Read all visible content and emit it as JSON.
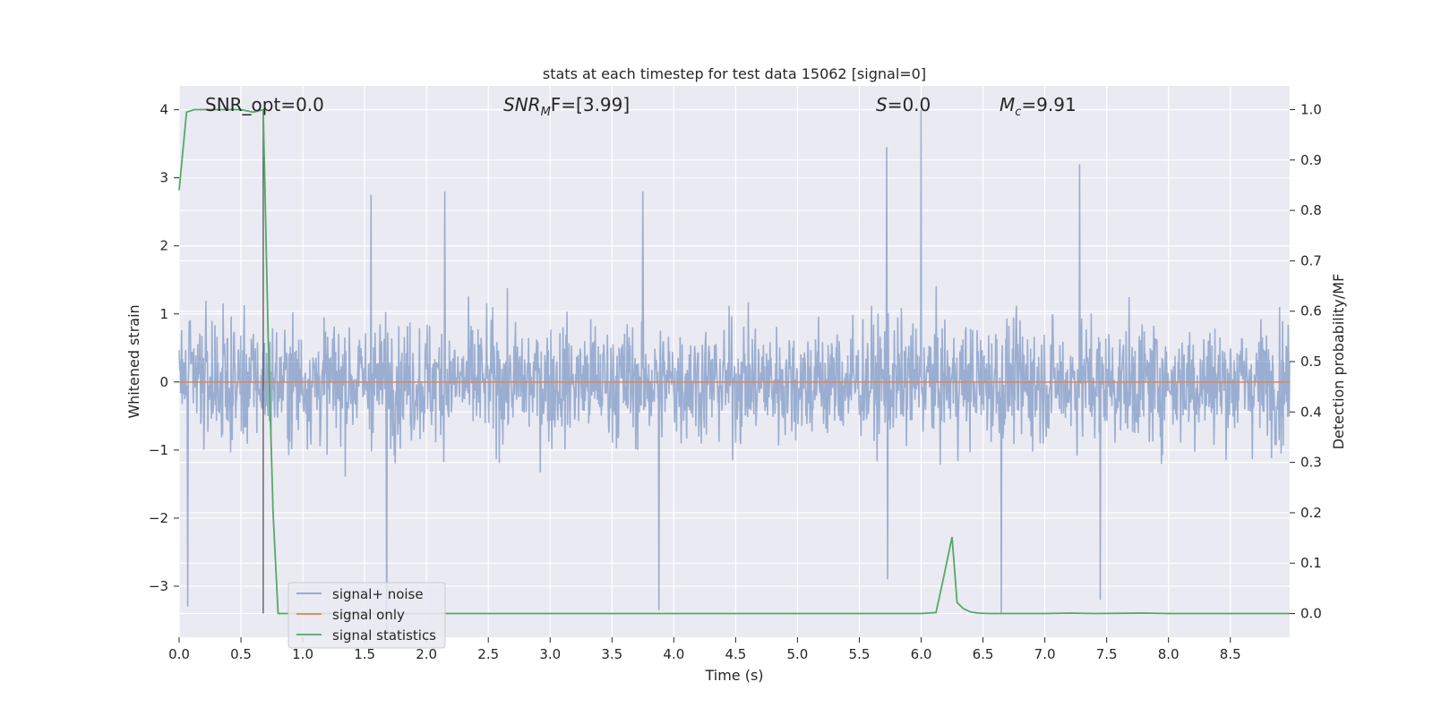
{
  "colors": {
    "figure_bg": "#ffffff",
    "axes_bg": "#eaeaf2",
    "grid": "#ffffff",
    "noise": "#4c72b0",
    "signal": "#dd8452",
    "stats": "#55a868",
    "marker": "#555555",
    "text": "#262626"
  },
  "chart_data": {
    "type": "line",
    "title": "stats at each timestep for test data 15062 [signal=0]",
    "xlabel": "Time (s)",
    "ylabel": "Whitened strain",
    "y2label": "Detection probability/MF",
    "xlim": [
      0,
      8.98
    ],
    "ylim": [
      -3.75,
      4.35
    ],
    "y2lim": [
      -0.047,
      1.047
    ],
    "grid": true,
    "legend_location": "lower-left",
    "x_ticks": [
      "0.0",
      "0.5",
      "1.0",
      "1.5",
      "2.0",
      "2.5",
      "3.0",
      "3.5",
      "4.0",
      "4.5",
      "5.0",
      "5.5",
      "6.0",
      "6.5",
      "7.0",
      "7.5",
      "8.0",
      "8.5"
    ],
    "y_ticks": [
      "4",
      "3",
      "2",
      "1",
      "0",
      "−1",
      "−2",
      "−3"
    ],
    "y2_ticks": [
      "1.0",
      "0.9",
      "0.8",
      "0.7",
      "0.6",
      "0.5",
      "0.4",
      "0.3",
      "0.2",
      "0.1",
      "0.0"
    ],
    "annotations": {
      "snr_opt": "SNR_opt=0.0",
      "snr_mf_main": "SNR",
      "snr_mf_sub": "M",
      "snr_mf_rest": "F=[3.99]",
      "s_main": "S",
      "s_rest": "=0.0",
      "mc_main": "M",
      "mc_sub": "c",
      "mc_rest": "=9.91"
    },
    "marker_time": 0.68,
    "series": [
      {
        "name": "signal+ noise",
        "axis": "left",
        "summary": "whitened strain noise, roughly within ±2 with spikes to about 4.0 at 6.0 s and -3.3 at 3.9 s",
        "peaks": [
          {
            "x": 0.07,
            "y": -3.3
          },
          {
            "x": 1.55,
            "y": 2.75
          },
          {
            "x": 1.68,
            "y": -3.7
          },
          {
            "x": 2.15,
            "y": 2.8
          },
          {
            "x": 3.75,
            "y": 2.8
          },
          {
            "x": 3.88,
            "y": -3.35
          },
          {
            "x": 5.72,
            "y": 3.45
          },
          {
            "x": 5.73,
            "y": -2.9
          },
          {
            "x": 6.0,
            "y": 4.0
          },
          {
            "x": 6.65,
            "y": -3.4
          },
          {
            "x": 7.28,
            "y": 3.2
          },
          {
            "x": 7.45,
            "y": -3.2
          }
        ]
      },
      {
        "name": "signal only",
        "axis": "left",
        "x": [
          0,
          8.98
        ],
        "y": [
          0,
          0
        ]
      },
      {
        "name": "signal statistics",
        "axis": "right",
        "x": [
          0.0,
          0.06,
          0.12,
          0.2,
          0.3,
          0.4,
          0.5,
          0.6,
          0.68,
          0.72,
          0.76,
          0.8,
          0.9,
          1.0,
          2.0,
          3.0,
          4.0,
          5.0,
          6.0,
          6.12,
          6.18,
          6.25,
          6.29,
          6.34,
          6.4,
          6.46,
          6.55,
          6.7,
          7.0,
          7.2,
          7.4,
          7.8,
          8.0,
          8.98
        ],
        "y": [
          0.84,
          0.995,
          1.0,
          1.0,
          1.0,
          1.0,
          1.0,
          0.995,
          1.0,
          0.55,
          0.2,
          0.0,
          0.0,
          0.0,
          0.0,
          0.0,
          0.0,
          0.0,
          0.0,
          0.002,
          0.07,
          0.152,
          0.022,
          0.01,
          0.003,
          0.001,
          0.0,
          0.0,
          0.0,
          0.001,
          0.0,
          0.001,
          0.0,
          0.0
        ]
      }
    ]
  }
}
